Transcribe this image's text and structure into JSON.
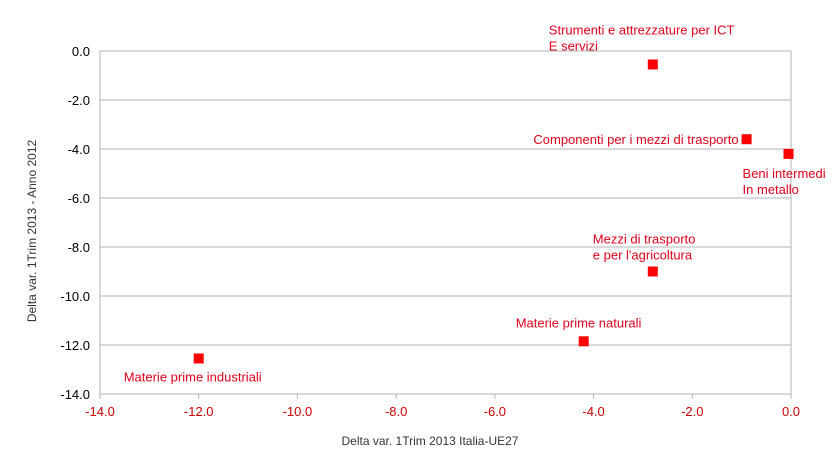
{
  "colors": {
    "marker": "#ff0000",
    "labels": "#e0001a",
    "x_ticks": "#cc0000",
    "y_ticks": "#000000",
    "grid": "#b3b3b3",
    "axis_title": "#333333"
  },
  "chart_data": {
    "type": "scatter",
    "title": "",
    "xlabel": "Delta var. 1Trim 2013 Italia-UE27",
    "ylabel": "Delta var. 1Trim 2013 - Anno 2012",
    "xlim": [
      -14,
      0
    ],
    "ylim": [
      -14,
      0
    ],
    "xticks": [
      "-14.0",
      "-12.0",
      "-10.0",
      "-8.0",
      "-6.0",
      "-4.0",
      "-2.0",
      "0.0"
    ],
    "yticks": [
      "0.0",
      "-2.0",
      "-4.0",
      "-6.0",
      "-8.0",
      "-10.0",
      "-12.0",
      "-14.0"
    ],
    "grid": true,
    "marker": "square",
    "points": [
      {
        "x": -2.8,
        "y": -0.55,
        "label": [
          "Strumenti e attrezzature per ICT",
          "E servizi"
        ]
      },
      {
        "x": -0.9,
        "y": -3.6,
        "label": [
          "Componenti per i mezzi di trasporto"
        ]
      },
      {
        "x": -0.05,
        "y": -4.2,
        "label": [
          "Beni intermedi",
          "In metallo"
        ]
      },
      {
        "x": -2.8,
        "y": -9.0,
        "label": [
          "Mezzi di trasporto",
          "e per l'agricoltura"
        ]
      },
      {
        "x": -4.2,
        "y": -11.85,
        "label": [
          "Materie prime naturali"
        ]
      },
      {
        "x": -12.0,
        "y": -12.55,
        "label": [
          "Materie prime industriali"
        ]
      }
    ]
  }
}
